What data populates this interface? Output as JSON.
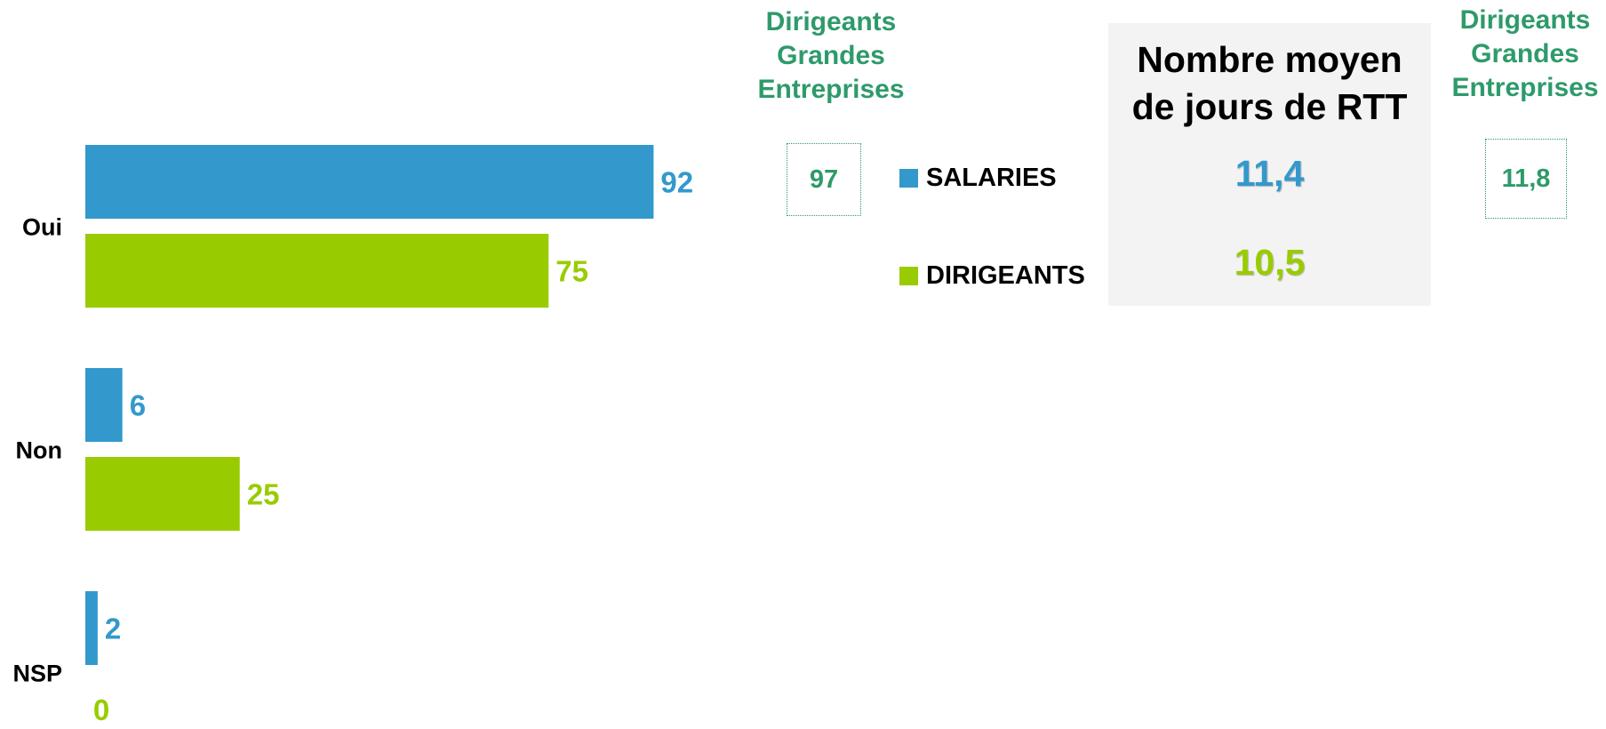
{
  "colors": {
    "salaries": "#3399cc",
    "dirigeants": "#99cc00",
    "accent_green": "#2e9a6a"
  },
  "chart_data": {
    "type": "bar",
    "orientation": "horizontal",
    "categories": [
      "Oui",
      "Non",
      "NSP"
    ],
    "series": [
      {
        "name": "SALARIES",
        "values": [
          92,
          6,
          2
        ]
      },
      {
        "name": "DIRIGEANTS",
        "values": [
          75,
          25,
          0
        ]
      }
    ],
    "xlim": [
      0,
      100
    ]
  },
  "legend": {
    "items": [
      {
        "label": "SALARIES"
      },
      {
        "label": "DIRIGEANTS"
      }
    ]
  },
  "grandes_entreprises": {
    "header": "Dirigeants Grandes Entreprises",
    "oui_value": "97"
  },
  "rtt_panel": {
    "title": "Nombre moyen de jours de RTT",
    "salaries_value": "11,4",
    "dirigeants_value": "10,5"
  },
  "rtt_grandes_entreprises": {
    "header": "Dirigeants Grandes Entreprises",
    "value": "11,8"
  }
}
